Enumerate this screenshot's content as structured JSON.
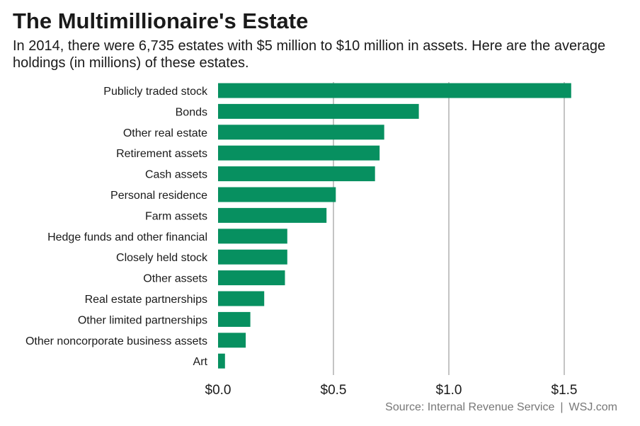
{
  "title": "The Multimillionaire's Estate",
  "subtitle": "In 2014, there were 6,735 estates with $5 million to $10 million in assets. Here are the average holdings (in millions) of these estates.",
  "source": {
    "text": "Source: Internal Revenue Service",
    "separator": "|",
    "site": "WSJ.com"
  },
  "colors": {
    "bar": "#079060",
    "grid": "#c4c4c4",
    "label": "#1a1a1a"
  },
  "chart_data": {
    "type": "bar",
    "orientation": "horizontal",
    "unit": "millions of dollars",
    "categories": [
      "Publicly traded stock",
      "Bonds",
      "Other real estate",
      "Retirement assets",
      "Cash assets",
      "Personal residence",
      "Farm assets",
      "Hedge funds and other financial",
      "Closely held stock",
      "Other assets",
      "Real estate partnerships",
      "Other limited partnerships",
      "Other noncorporate business assets",
      "Art"
    ],
    "values": [
      1.53,
      0.87,
      0.72,
      0.7,
      0.68,
      0.51,
      0.47,
      0.3,
      0.3,
      0.29,
      0.2,
      0.14,
      0.12,
      0.03
    ],
    "xlim": [
      0,
      1.7
    ],
    "ticks": [
      0,
      0.5,
      1.0,
      1.5
    ],
    "tick_labels": [
      "$0.0",
      "$0.5",
      "$1.0",
      "$1.5"
    ],
    "grid": true
  }
}
